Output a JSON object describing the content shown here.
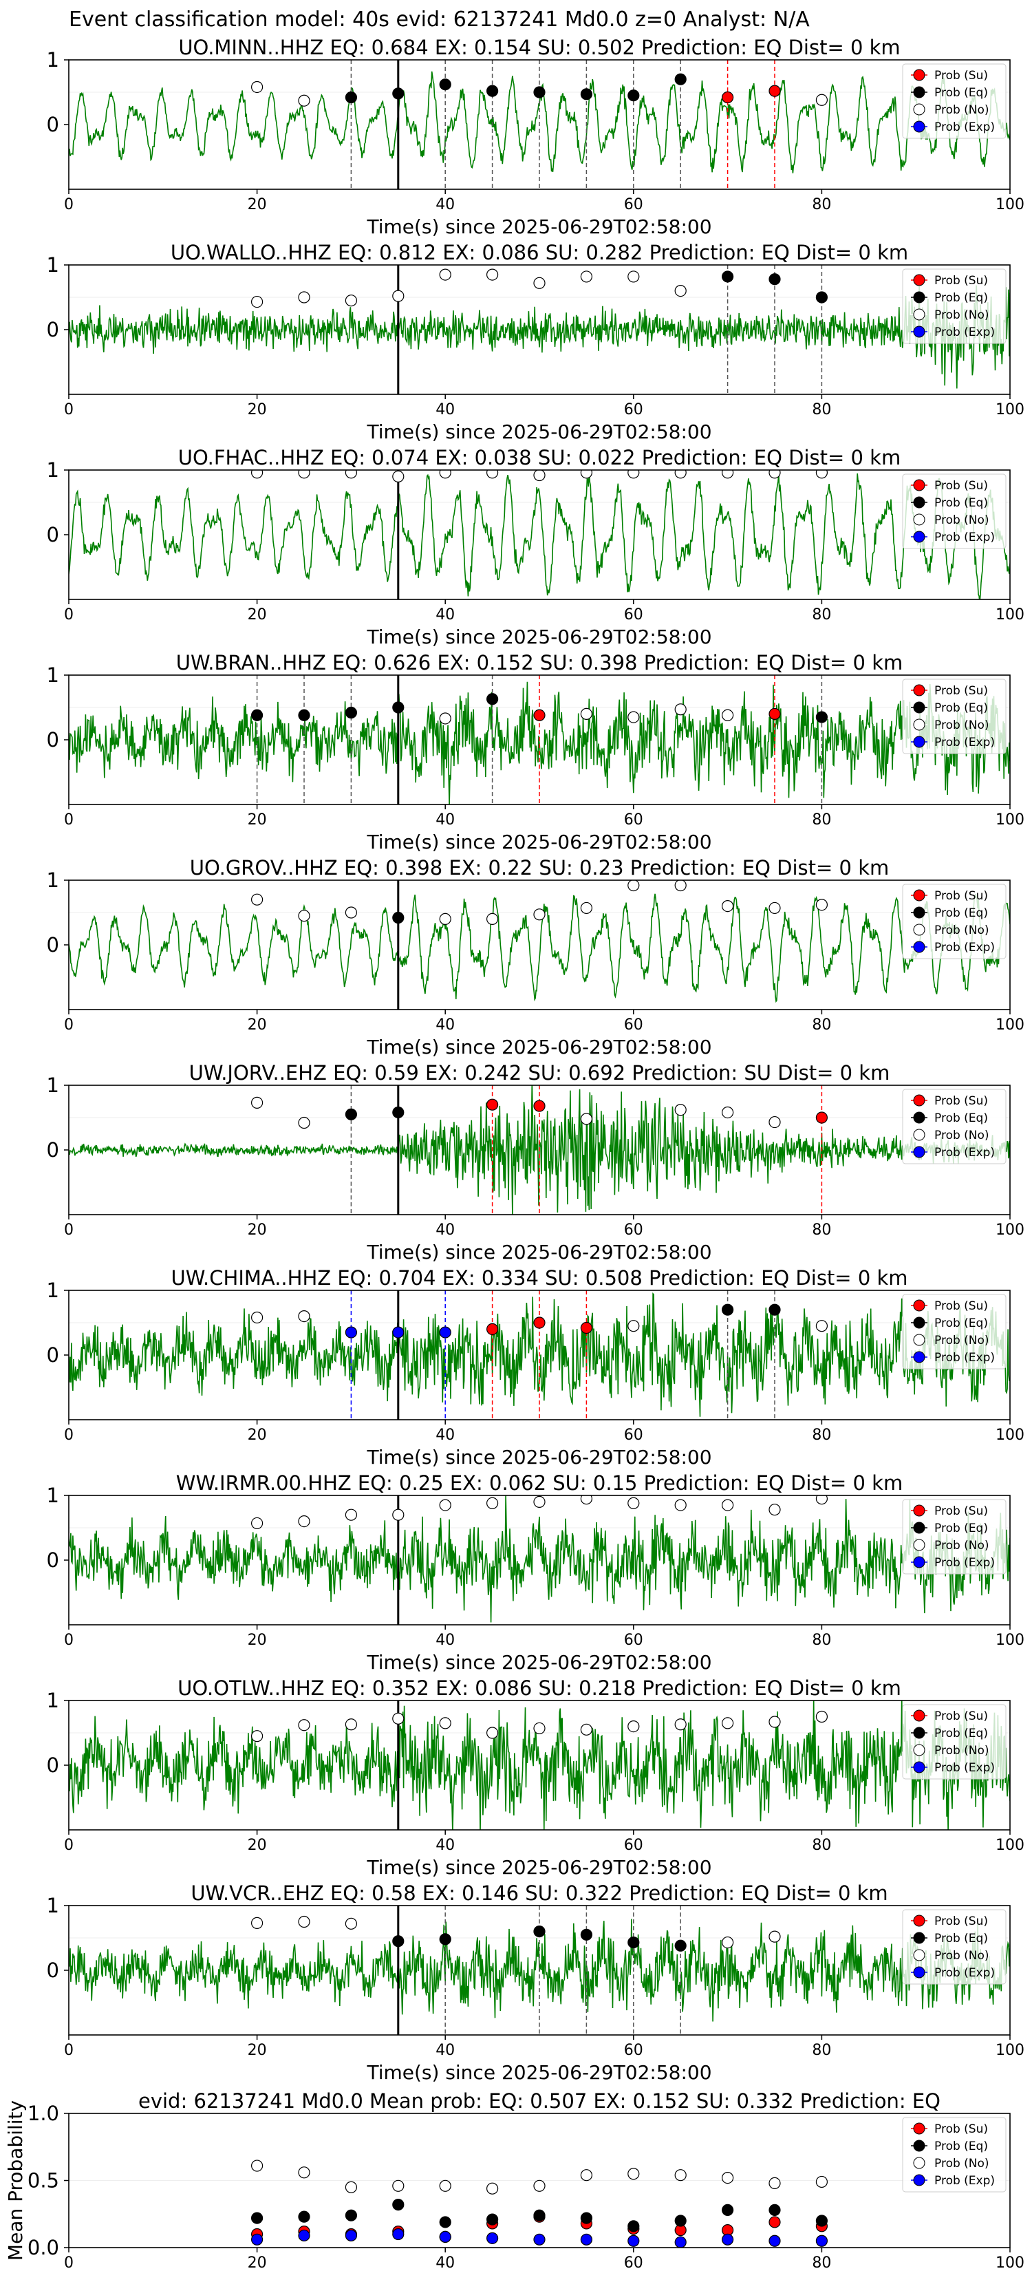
{
  "suptitle": "Event classification model: 40s evid: 62137241 Md0.0 z=0 Analyst: N/A",
  "xlabel": "Time(s) since 2025-06-29T02:58:00",
  "colors": {
    "waveform": "#008000",
    "su": "#ff0000",
    "eq": "#000000",
    "no": "#ffffff",
    "exp": "#0000ff",
    "arrival": "#000000"
  },
  "legend_labels": [
    "Prob (Su)",
    "Prob (Eq)",
    "Prob (No)",
    "Prob (Exp)"
  ],
  "chart_data": [
    {
      "type": "scatter",
      "title": "UO.MINN..HHZ   EQ: 0.684  EX: 0.154  SU: 0.502   Prediction: EQ    Dist= 0 km",
      "xlim": [
        0,
        100
      ],
      "ylim": [
        -1,
        1
      ],
      "xticks": [
        0,
        20,
        40,
        60,
        80,
        100
      ],
      "yticks": [
        0,
        1
      ],
      "arrival_time": 35,
      "x": [
        20,
        25,
        30,
        35,
        40,
        45,
        50,
        55,
        60,
        65,
        70,
        75,
        80
      ],
      "prob": [
        0.58,
        0.37,
        0.42,
        0.48,
        0.62,
        0.52,
        0.5,
        0.47,
        0.45,
        0.7,
        0.42,
        0.52,
        0.38
      ],
      "cls": [
        "no",
        "no",
        "eq",
        "eq",
        "eq",
        "eq",
        "eq",
        "eq",
        "eq",
        "eq",
        "su",
        "su",
        "no"
      ],
      "legend_position": "upper right",
      "waveform": {
        "seed": 11,
        "amp": 0.55,
        "style": "osc",
        "onset": 35
      }
    },
    {
      "type": "scatter",
      "title": "UO.WALLO..HHZ   EQ: 0.812  EX: 0.086  SU: 0.282   Prediction: EQ    Dist= 0 km",
      "xlim": [
        0,
        100
      ],
      "ylim": [
        -1,
        1
      ],
      "xticks": [
        0,
        20,
        40,
        60,
        80,
        100
      ],
      "yticks": [
        0,
        1
      ],
      "arrival_time": 35,
      "x": [
        20,
        25,
        30,
        35,
        40,
        45,
        50,
        55,
        60,
        65,
        70,
        75,
        80
      ],
      "prob": [
        0.43,
        0.5,
        0.45,
        0.52,
        0.85,
        0.85,
        0.72,
        0.82,
        0.82,
        0.6,
        0.82,
        0.78,
        0.5
      ],
      "cls": [
        "no",
        "no",
        "no",
        "no",
        "no",
        "no",
        "no",
        "no",
        "no",
        "no",
        "eq",
        "eq",
        "eq"
      ],
      "legend_position": "upper right",
      "waveform": {
        "seed": 23,
        "amp": 0.2,
        "style": "noise",
        "onset": 35
      }
    },
    {
      "type": "scatter",
      "title": "UO.FHAC..HHZ   EQ: 0.074  EX: 0.038  SU: 0.022   Prediction: EQ    Dist= 0 km",
      "xlim": [
        0,
        100
      ],
      "ylim": [
        -1,
        1
      ],
      "xticks": [
        0,
        20,
        40,
        60,
        80,
        100
      ],
      "yticks": [
        0,
        1
      ],
      "arrival_time": 35,
      "x": [
        20,
        25,
        30,
        35,
        40,
        45,
        50,
        55,
        60,
        65,
        70,
        75,
        80
      ],
      "prob": [
        0.96,
        0.96,
        0.96,
        0.9,
        0.96,
        0.96,
        0.92,
        0.96,
        0.96,
        0.96,
        0.96,
        0.96,
        0.96
      ],
      "cls": [
        "no",
        "no",
        "no",
        "no",
        "no",
        "no",
        "no",
        "no",
        "no",
        "no",
        "no",
        "no",
        "no"
      ],
      "legend_position": "upper right",
      "waveform": {
        "seed": 37,
        "amp": 0.7,
        "style": "osc",
        "onset": 35
      }
    },
    {
      "type": "scatter",
      "title": "UW.BRAN..HHZ   EQ: 0.626  EX: 0.152  SU: 0.398   Prediction: EQ    Dist= 0 km",
      "xlim": [
        0,
        100
      ],
      "ylim": [
        -1,
        1
      ],
      "xticks": [
        0,
        20,
        40,
        60,
        80,
        100
      ],
      "yticks": [
        0,
        1
      ],
      "arrival_time": 35,
      "x": [
        20,
        25,
        30,
        35,
        40,
        45,
        50,
        55,
        60,
        65,
        70,
        75,
        80
      ],
      "prob": [
        0.38,
        0.38,
        0.42,
        0.5,
        0.33,
        0.63,
        0.38,
        0.4,
        0.35,
        0.47,
        0.38,
        0.4,
        0.35
      ],
      "cls": [
        "eq",
        "eq",
        "eq",
        "eq",
        "no",
        "eq",
        "su",
        "no",
        "no",
        "no",
        "no",
        "su",
        "eq"
      ],
      "legend_position": "upper right",
      "waveform": {
        "seed": 41,
        "amp": 0.45,
        "style": "burst",
        "onset": 35
      }
    },
    {
      "type": "scatter",
      "title": "UO.GROV..HHZ   EQ: 0.398  EX: 0.22  SU: 0.23   Prediction: EQ    Dist= 0 km",
      "xlim": [
        0,
        100
      ],
      "ylim": [
        -1,
        1
      ],
      "xticks": [
        0,
        20,
        40,
        60,
        80,
        100
      ],
      "yticks": [
        0,
        1
      ],
      "arrival_time": 35,
      "x": [
        20,
        25,
        30,
        35,
        40,
        45,
        50,
        55,
        60,
        65,
        70,
        75,
        80
      ],
      "prob": [
        0.7,
        0.45,
        0.5,
        0.42,
        0.4,
        0.4,
        0.47,
        0.57,
        0.92,
        0.92,
        0.6,
        0.57,
        0.62
      ],
      "cls": [
        "no",
        "no",
        "no",
        "eq",
        "no",
        "no",
        "no",
        "no",
        "no",
        "no",
        "no",
        "no",
        "no"
      ],
      "legend_position": "upper right",
      "waveform": {
        "seed": 53,
        "amp": 0.6,
        "style": "osc",
        "onset": 35
      }
    },
    {
      "type": "scatter",
      "title": "UW.JORV..EHZ   EQ: 0.59  EX: 0.242  SU: 0.692   Prediction: SU    Dist= 0 km",
      "xlim": [
        0,
        100
      ],
      "ylim": [
        -1,
        1
      ],
      "xticks": [
        0,
        20,
        40,
        60,
        80,
        100
      ],
      "yticks": [
        0,
        1
      ],
      "arrival_time": 35,
      "x": [
        20,
        25,
        30,
        35,
        45,
        50,
        55,
        65,
        70,
        75,
        80
      ],
      "prob": [
        0.73,
        0.42,
        0.55,
        0.58,
        0.7,
        0.68,
        0.48,
        0.62,
        0.58,
        0.43,
        0.5
      ],
      "cls": [
        "no",
        "no",
        "eq",
        "eq",
        "su",
        "su",
        "no",
        "no",
        "no",
        "no",
        "su"
      ],
      "legend_position": "upper right",
      "waveform": {
        "seed": 67,
        "amp": 0.5,
        "style": "event",
        "onset": 35
      }
    },
    {
      "type": "scatter",
      "title": "UW.CHIMA..HHZ   EQ: 0.704  EX: 0.334  SU: 0.508   Prediction: EQ    Dist= 0 km",
      "xlim": [
        0,
        100
      ],
      "ylim": [
        -1,
        1
      ],
      "xticks": [
        0,
        20,
        40,
        60,
        80,
        100
      ],
      "yticks": [
        0,
        1
      ],
      "arrival_time": 35,
      "x": [
        20,
        25,
        30,
        35,
        40,
        45,
        50,
        55,
        60,
        70,
        75,
        80
      ],
      "prob": [
        0.58,
        0.6,
        0.35,
        0.35,
        0.35,
        0.4,
        0.5,
        0.42,
        0.45,
        0.7,
        0.7,
        0.45
      ],
      "cls": [
        "no",
        "no",
        "exp",
        "exp",
        "exp",
        "su",
        "su",
        "su",
        "no",
        "eq",
        "eq",
        "no"
      ],
      "legend_position": "upper right",
      "waveform": {
        "seed": 79,
        "amp": 0.5,
        "style": "burst",
        "onset": 35
      }
    },
    {
      "type": "scatter",
      "title": "WW.IRMR.00.HHZ   EQ: 0.25  EX: 0.062  SU: 0.15   Prediction: EQ    Dist= 0 km",
      "xlim": [
        0,
        100
      ],
      "ylim": [
        -1,
        1
      ],
      "xticks": [
        0,
        20,
        40,
        60,
        80,
        100
      ],
      "yticks": [
        0,
        1
      ],
      "arrival_time": 35,
      "x": [
        20,
        25,
        30,
        35,
        40,
        45,
        50,
        55,
        60,
        65,
        70,
        75,
        80
      ],
      "prob": [
        0.57,
        0.6,
        0.7,
        0.7,
        0.85,
        0.88,
        0.9,
        0.95,
        0.88,
        0.85,
        0.85,
        0.78,
        0.95
      ],
      "cls": [
        "no",
        "no",
        "no",
        "no",
        "no",
        "no",
        "no",
        "no",
        "no",
        "no",
        "no",
        "no",
        "no"
      ],
      "legend_position": "upper right",
      "waveform": {
        "seed": 83,
        "amp": 0.45,
        "style": "burst",
        "onset": 35
      }
    },
    {
      "type": "scatter",
      "title": "UO.OTLW..HHZ   EQ: 0.352  EX: 0.086  SU: 0.218   Prediction: EQ    Dist= 0 km",
      "xlim": [
        0,
        100
      ],
      "ylim": [
        -1,
        1
      ],
      "xticks": [
        0,
        20,
        40,
        60,
        80,
        100
      ],
      "yticks": [
        0,
        1
      ],
      "arrival_time": 35,
      "x": [
        20,
        25,
        30,
        35,
        40,
        45,
        50,
        55,
        60,
        65,
        70,
        75,
        80
      ],
      "prob": [
        0.45,
        0.62,
        0.63,
        0.72,
        0.65,
        0.5,
        0.57,
        0.55,
        0.6,
        0.63,
        0.65,
        0.67,
        0.75
      ],
      "cls": [
        "no",
        "no",
        "no",
        "no",
        "no",
        "no",
        "no",
        "no",
        "no",
        "no",
        "no",
        "no",
        "no"
      ],
      "legend_position": "upper right",
      "waveform": {
        "seed": 97,
        "amp": 0.55,
        "style": "burst",
        "onset": 35
      }
    },
    {
      "type": "scatter",
      "title": "UW.VCR..EHZ   EQ: 0.58  EX: 0.146  SU: 0.322   Prediction: EQ    Dist= 0 km",
      "xlim": [
        0,
        100
      ],
      "ylim": [
        -1,
        1
      ],
      "xticks": [
        0,
        20,
        40,
        60,
        80,
        100
      ],
      "yticks": [
        0,
        1
      ],
      "arrival_time": 35,
      "x": [
        20,
        25,
        30,
        35,
        40,
        50,
        55,
        60,
        65,
        70,
        75
      ],
      "prob": [
        0.73,
        0.75,
        0.72,
        0.45,
        0.48,
        0.6,
        0.55,
        0.43,
        0.38,
        0.43,
        0.52
      ],
      "cls": [
        "no",
        "no",
        "no",
        "eq",
        "eq",
        "eq",
        "eq",
        "eq",
        "eq",
        "no",
        "no"
      ],
      "legend_position": "upper right",
      "waveform": {
        "seed": 101,
        "amp": 0.4,
        "style": "burst",
        "onset": 35
      }
    },
    {
      "type": "scatter",
      "title": "evid: 62137241  Md0.0   Mean prob:   EQ: 0.507  EX: 0.152  SU: 0.332   Prediction: EQ",
      "ylabel": "Mean Probability",
      "xlim": [
        0,
        100
      ],
      "ylim": [
        0,
        1
      ],
      "xticks": [
        0,
        20,
        40,
        60,
        80,
        100
      ],
      "yticks": [
        0,
        0.5,
        1
      ],
      "ytick_labels": [
        "0.0",
        "0.5",
        "1.0"
      ],
      "x": [
        20,
        25,
        30,
        35,
        40,
        45,
        50,
        55,
        60,
        65,
        70,
        75,
        80
      ],
      "series": [
        {
          "name": "Prob (Su)",
          "cls": "su",
          "values": [
            0.1,
            0.12,
            0.1,
            0.12,
            0.08,
            0.18,
            0.23,
            0.18,
            0.14,
            0.13,
            0.13,
            0.19,
            0.16
          ]
        },
        {
          "name": "Prob (Eq)",
          "cls": "eq",
          "values": [
            0.22,
            0.23,
            0.24,
            0.32,
            0.19,
            0.21,
            0.24,
            0.22,
            0.16,
            0.2,
            0.28,
            0.28,
            0.2
          ]
        },
        {
          "name": "Prob (No)",
          "cls": "no",
          "values": [
            0.61,
            0.56,
            0.45,
            0.46,
            0.46,
            0.44,
            0.46,
            0.54,
            0.55,
            0.54,
            0.52,
            0.48,
            0.49
          ]
        },
        {
          "name": "Prob (Exp)",
          "cls": "exp",
          "values": [
            0.06,
            0.09,
            0.09,
            0.1,
            0.08,
            0.07,
            0.06,
            0.06,
            0.05,
            0.04,
            0.06,
            0.05,
            0.05
          ]
        }
      ],
      "legend_position": "upper right"
    }
  ]
}
